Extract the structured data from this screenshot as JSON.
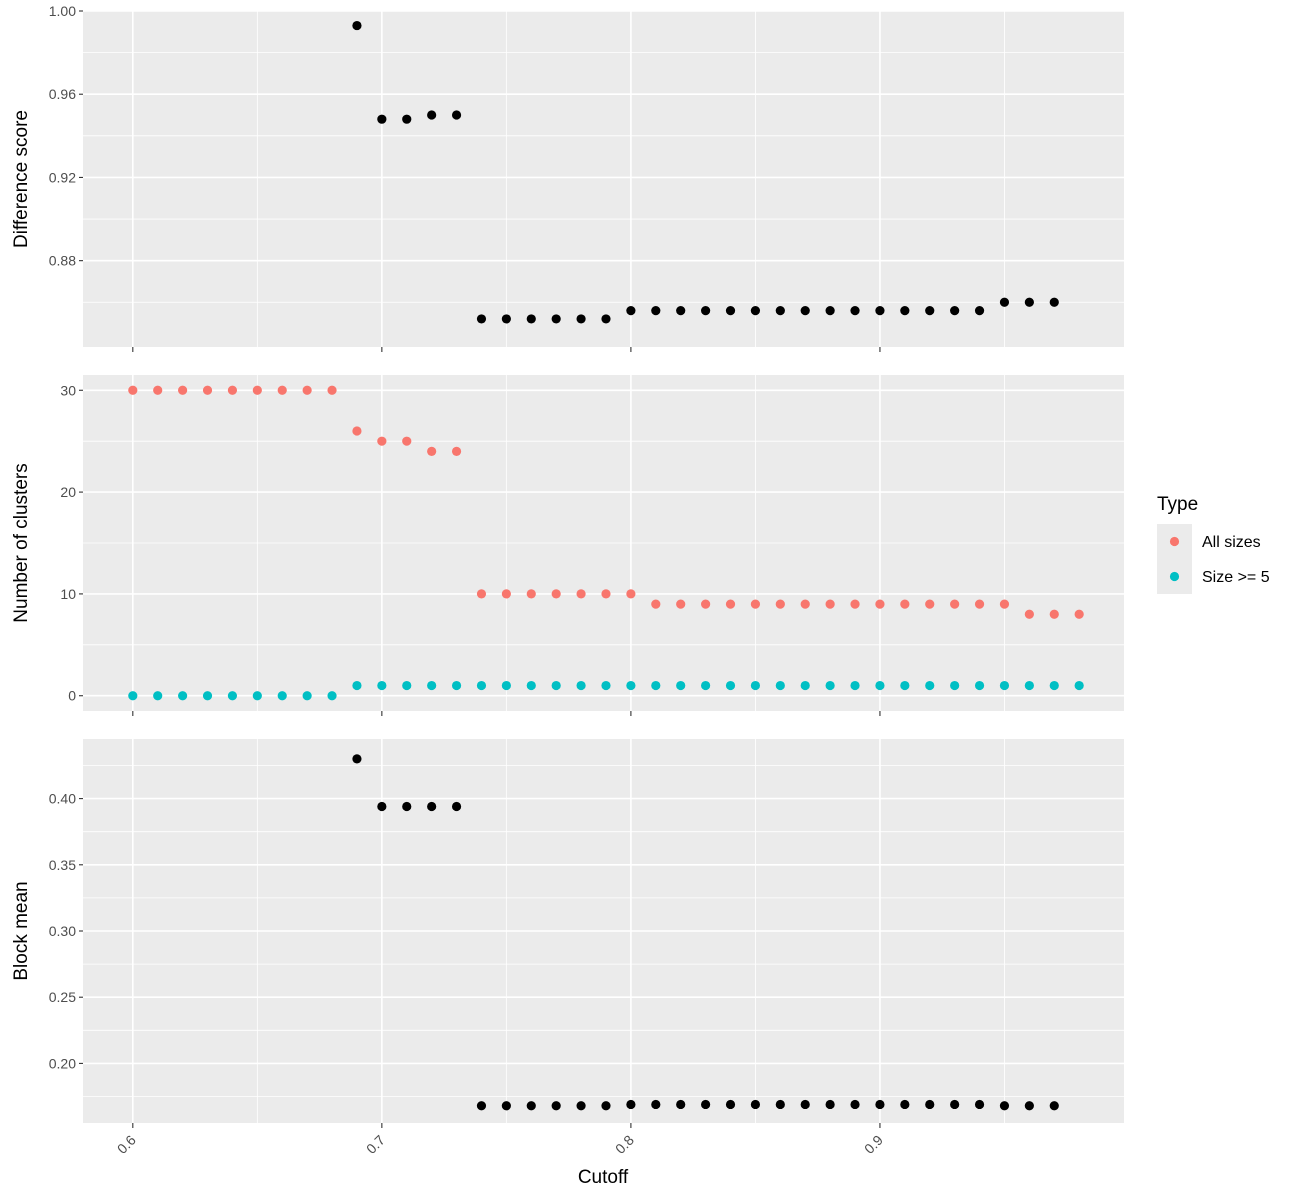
{
  "chart_data": {
    "type": "scatter",
    "x": [
      0.6,
      0.61,
      0.62,
      0.63,
      0.64,
      0.65,
      0.66,
      0.67,
      0.68,
      0.69,
      0.7,
      0.71,
      0.72,
      0.73,
      0.74,
      0.75,
      0.76,
      0.77,
      0.78,
      0.79,
      0.8,
      0.81,
      0.82,
      0.83,
      0.84,
      0.85,
      0.86,
      0.87,
      0.88,
      0.89,
      0.9,
      0.91,
      0.92,
      0.93,
      0.94,
      0.95,
      0.96,
      0.97,
      0.98
    ],
    "xlabel": "Cutoff",
    "xlim": [
      0.58,
      0.998
    ],
    "x_ticks": [
      0.6,
      0.7,
      0.8,
      0.9
    ],
    "x_tick_labels": [
      "0.6",
      "0.7",
      "0.8",
      "0.9"
    ],
    "panels": [
      {
        "ylabel": "Difference score",
        "ylim": [
          0.8385,
          1.0
        ],
        "y_ticks": [
          1.0,
          0.96,
          0.92,
          0.88
        ],
        "y_tick_labels": [
          "1.00",
          "0.96",
          "0.92",
          "0.88"
        ],
        "y_minor": [
          0.98,
          0.94,
          0.9,
          0.86
        ],
        "series": [
          {
            "color": "#000000",
            "start_index": 9,
            "values": [
              0.993,
              0.948,
              0.948,
              0.95,
              0.95,
              0.852,
              0.852,
              0.852,
              0.852,
              0.852,
              0.852,
              0.856,
              0.856,
              0.856,
              0.856,
              0.856,
              0.856,
              0.856,
              0.856,
              0.856,
              0.856,
              0.856,
              0.856,
              0.856,
              0.856,
              0.856,
              0.86,
              0.86,
              0.86
            ]
          }
        ]
      },
      {
        "ylabel": "Number of clusters",
        "ylim": [
          -1.5,
          31.5
        ],
        "y_ticks": [
          30,
          20,
          10,
          0
        ],
        "y_tick_labels": [
          "30",
          "20",
          "10",
          "0"
        ],
        "y_minor": [
          25,
          15,
          5
        ],
        "series": [
          {
            "name": "All sizes",
            "color": "#F8766D",
            "start_index": 0,
            "values": [
              30,
              30,
              30,
              30,
              30,
              30,
              30,
              30,
              30,
              26,
              25,
              25,
              24,
              24,
              10,
              10,
              10,
              10,
              10,
              10,
              10,
              9,
              9,
              9,
              9,
              9,
              9,
              9,
              9,
              9,
              9,
              9,
              9,
              9,
              9,
              9,
              8,
              8,
              8
            ]
          },
          {
            "name": "Size >= 5",
            "color": "#00BFC4",
            "start_index": 0,
            "values": [
              0,
              0,
              0,
              0,
              0,
              0,
              0,
              0,
              0,
              1,
              1,
              1,
              1,
              1,
              1,
              1,
              1,
              1,
              1,
              1,
              1,
              1,
              1,
              1,
              1,
              1,
              1,
              1,
              1,
              1,
              1,
              1,
              1,
              1,
              1,
              1,
              1,
              1,
              1
            ]
          }
        ]
      },
      {
        "ylabel": "Block mean",
        "ylim": [
          0.155,
          0.445
        ],
        "y_ticks": [
          0.4,
          0.35,
          0.3,
          0.25,
          0.2
        ],
        "y_tick_labels": [
          "0.40",
          "0.35",
          "0.30",
          "0.25",
          "0.20"
        ],
        "y_minor": [
          0.425,
          0.375,
          0.325,
          0.275,
          0.225,
          0.175
        ],
        "series": [
          {
            "color": "#000000",
            "start_index": 9,
            "values": [
              0.43,
              0.394,
              0.394,
              0.394,
              0.394,
              0.168,
              0.168,
              0.168,
              0.168,
              0.168,
              0.168,
              0.169,
              0.169,
              0.169,
              0.169,
              0.169,
              0.169,
              0.169,
              0.169,
              0.169,
              0.169,
              0.169,
              0.169,
              0.169,
              0.169,
              0.169,
              0.168,
              0.168,
              0.168
            ]
          }
        ]
      }
    ],
    "legend": {
      "title": "Type",
      "position": "right",
      "entries": [
        {
          "label": "All sizes",
          "color": "#F8766D"
        },
        {
          "label": "Size >= 5",
          "color": "#00BFC4"
        }
      ]
    },
    "grid": true,
    "panel_background": "#EBEBEB",
    "grid_color": "#FFFFFF"
  }
}
